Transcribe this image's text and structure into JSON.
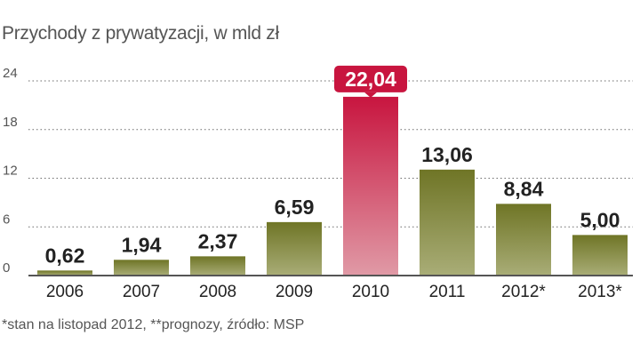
{
  "title": "Przychody z prywatyzacji, w mld zł",
  "footnote": "*stan na listopad 2012, **prognozy, źródło: MSP",
  "colors": {
    "bar_top": "#6f7526",
    "bar_bottom": "#a9ad77",
    "highlight_top": "#c8153f",
    "highlight_bottom": "#e09aa6",
    "highlight_label_bg": "#c8153f",
    "grid": "#6a6a6a",
    "text": "#222222",
    "axis_text": "#555555"
  },
  "chart_data": {
    "type": "bar",
    "categories": [
      "2006",
      "2007",
      "2008",
      "2009",
      "2010",
      "2011",
      "2012*",
      "2013*"
    ],
    "values": [
      0.62,
      1.94,
      2.37,
      6.59,
      22.04,
      13.06,
      8.84,
      5.0
    ],
    "value_labels": [
      "0,62",
      "1,94",
      "2,37",
      "6,59",
      "22,04",
      "13,06",
      "8,84",
      "5,00"
    ],
    "highlight_index": 4,
    "ylim": [
      0,
      24
    ],
    "yticks": [
      0,
      6,
      12,
      18,
      24
    ],
    "grid": true,
    "title": "Przychody z prywatyzacji, w mld zł",
    "xlabel": "",
    "ylabel": ""
  }
}
